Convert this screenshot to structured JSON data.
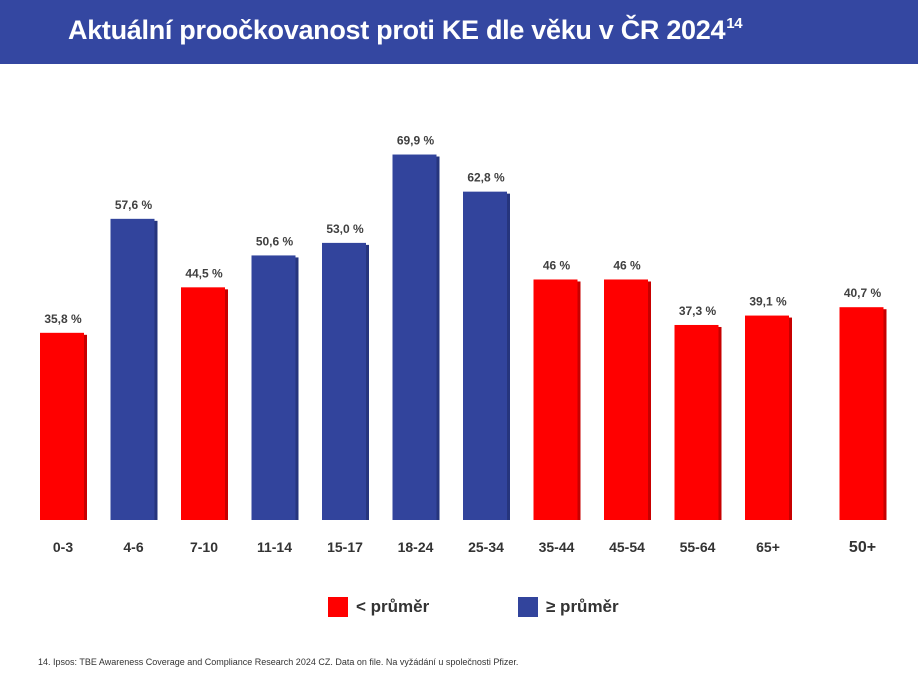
{
  "header": {
    "title": "Aktuální proočkovanost proti KE dle věku v ČR 2024",
    "title_sup": "14"
  },
  "colors": {
    "header_bg": "#3447a1",
    "below_avg": "#ff0000",
    "above_avg": "#32449c"
  },
  "chart_data": {
    "type": "bar",
    "title": "Aktuální proočkovanost proti KE dle věku v ČR 2024",
    "xlabel": "",
    "ylabel": "",
    "ylim": [
      0,
      70
    ],
    "grid": false,
    "categories": [
      "0-3",
      "4-6",
      "7-10",
      "11-14",
      "15-17",
      "18-24",
      "25-34",
      "35-44",
      "45-54",
      "55-64",
      "65+",
      "50+"
    ],
    "values": [
      35.8,
      57.6,
      44.5,
      50.6,
      53.0,
      69.9,
      62.8,
      46,
      46,
      37.3,
      39.1,
      40.7
    ],
    "value_labels": [
      "35,8 %",
      "57,6 %",
      "44,5 %",
      "50,6 %",
      "53,0 %",
      "69,9 %",
      "62,8 %",
      "46 %",
      "46 %",
      "37,3 %",
      "39,1 %",
      "40,7 %"
    ],
    "group": [
      "below",
      "above",
      "below",
      "above",
      "above",
      "above",
      "above",
      "below",
      "below",
      "below",
      "below",
      "below"
    ],
    "legend": {
      "position": "bottom",
      "items": [
        {
          "key": "below",
          "label": "< průměr",
          "color": "#ff0000"
        },
        {
          "key": "above",
          "label": "≥ průměr",
          "color": "#32449c"
        }
      ]
    }
  },
  "footnote": "14. Ipsos: TBE Awareness Coverage and Compliance Research 2024 CZ. Data on file. Na vyžádání u společnosti Pfizer."
}
